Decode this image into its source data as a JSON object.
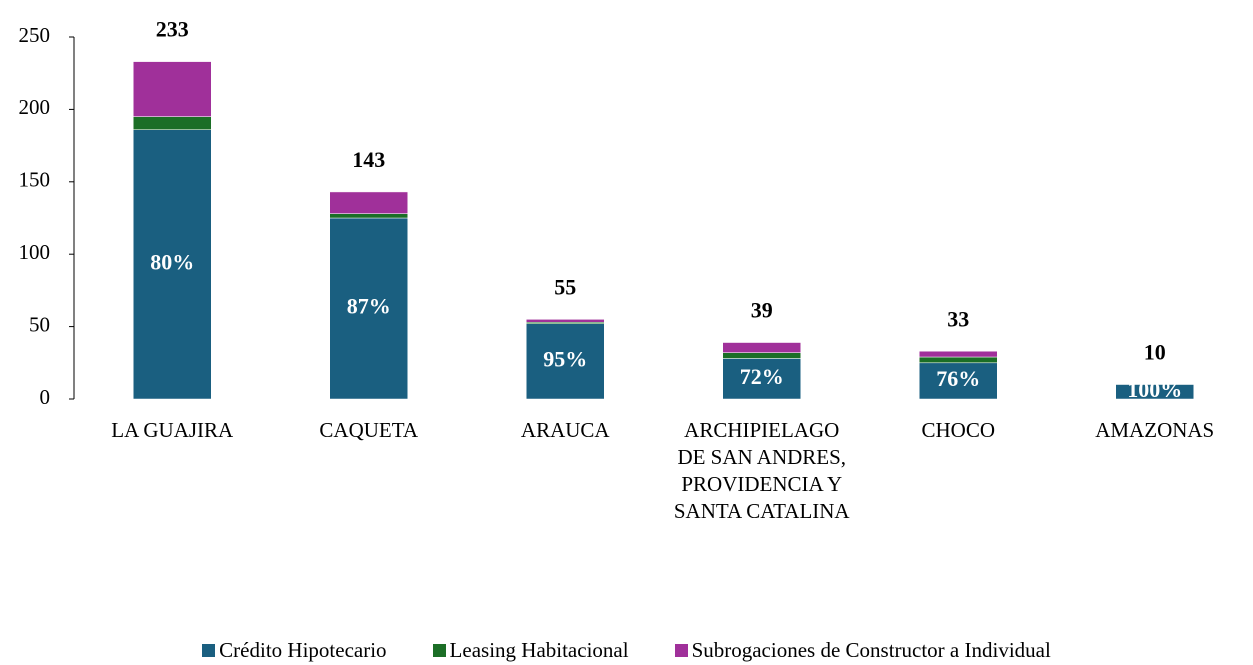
{
  "chart_data": {
    "type": "stacked_bar",
    "categories": [
      "LA GUAJIRA",
      "CAQUETA",
      "ARAUCA",
      "ARCHIPIELAGO DE SAN ANDRES, PROVIDENCIA Y SANTA CATALINA",
      "CHOCO",
      "AMAZONAS"
    ],
    "series": [
      {
        "name": "Crédito Hipotecario",
        "color": "#1a5f80",
        "values": [
          186,
          125,
          52,
          28,
          25,
          10
        ],
        "value_labels": [
          "80%",
          "87%",
          "95%",
          "72%",
          "76%",
          "100%"
        ]
      },
      {
        "name": "Leasing Habitacional",
        "color": "#1b6e26",
        "values": [
          9,
          3,
          1,
          4,
          4,
          0
        ]
      },
      {
        "name": "Subrogaciones de Constructor a Individual",
        "color": "#a0309a",
        "values": [
          38,
          15,
          2,
          7,
          4,
          0
        ]
      }
    ],
    "totals": [
      233,
      143,
      55,
      39,
      33,
      10
    ],
    "ylim": [
      0,
      250
    ],
    "yticks": [
      0,
      50,
      100,
      150,
      200,
      250
    ],
    "grid": false,
    "legend": "bottom"
  }
}
